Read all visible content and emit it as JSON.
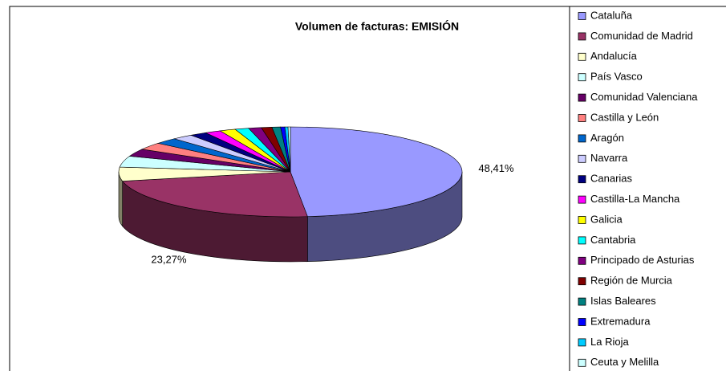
{
  "chart_data": {
    "type": "pie",
    "title": "Volumen de facturas: EMISIÓN",
    "categories": [
      "Cataluña",
      "Comunidad de Madrid",
      "Andalucía",
      "País Vasco",
      "Comunidad Valenciana",
      "Castilla y León",
      "Aragón",
      "Navarra",
      "Canarias",
      "Castilla-La Mancha",
      "Galicia",
      "Cantabria",
      "Principado de Asturias",
      "Región de Murcia",
      "Islas Baleares",
      "Extremadura",
      "La Rioja",
      "Ceuta y Melilla"
    ],
    "values": [
      48.41,
      23.27,
      5,
      4,
      2.7,
      2.6,
      2.2,
      2,
      1.6,
      1.5,
      1.5,
      1.3,
      1.2,
      1,
      0.8,
      0.4,
      0.3,
      0.22
    ],
    "value_labels": [
      "48,41%",
      "23,27%",
      null,
      null,
      null,
      null,
      null,
      null,
      null,
      null,
      null,
      null,
      null,
      null,
      null,
      null,
      null,
      null
    ],
    "colors": [
      "#9999ff",
      "#993366",
      "#ffffcc",
      "#ccffff",
      "#660066",
      "#ff8080",
      "#0066cc",
      "#ccccff",
      "#000080",
      "#ff00ff",
      "#ffff00",
      "#00ffff",
      "#800080",
      "#800000",
      "#008080",
      "#0000ff",
      "#00ccff",
      "#ccffff"
    ],
    "legend": "right",
    "three_d": true
  }
}
